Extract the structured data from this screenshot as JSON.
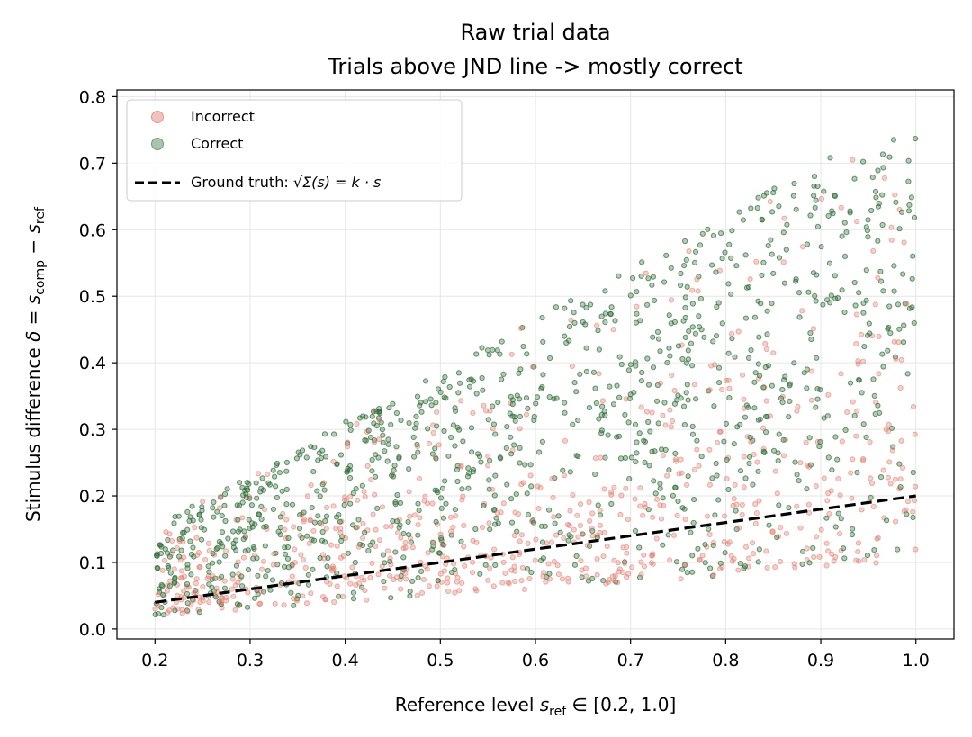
{
  "chart_data": {
    "type": "scatter",
    "title": "Raw trial data",
    "subtitle": "Trials above JND line -> mostly correct",
    "xlabel": "Reference level  s_ref ∈  [0.2, 1.0]",
    "ylabel": "Stimulus difference  δ = s_comp − s_ref",
    "xlim": [
      0.16,
      1.04
    ],
    "ylim": [
      -0.015,
      0.81
    ],
    "xticks": [
      "0.2",
      "0.3",
      "0.4",
      "0.5",
      "0.6",
      "0.7",
      "0.8",
      "0.9",
      "1.0"
    ],
    "yticks": [
      "0.0",
      "0.1",
      "0.2",
      "0.3",
      "0.4",
      "0.5",
      "0.6",
      "0.7",
      "0.8"
    ],
    "grid": true,
    "legend_position": "top-left",
    "series": [
      {
        "name": "Incorrect",
        "color": "#e07b6e",
        "marker": "circle",
        "n_points": 720,
        "region": "mostly below ~0.5*s+0.1"
      },
      {
        "name": "Correct",
        "color": "#2e6b35",
        "marker": "circle",
        "n_points": 1080,
        "region": "spread up to ~0.78*s"
      },
      {
        "name": "Ground truth: √Σ(s) = k · s",
        "color": "#000000",
        "style": "dashed",
        "k": 0.2,
        "x": [
          0.2,
          1.0
        ],
        "y": [
          0.04,
          0.2
        ]
      }
    ],
    "sampling": {
      "x_range": [
        0.2,
        1.0
      ],
      "delta_min_ratio": 0.1,
      "delta_max_ratio": 0.78
    }
  },
  "legend": {
    "incorrect": "Incorrect",
    "correct": "Correct",
    "ground_truth_prefix": "Ground truth: ",
    "ground_truth_formula": "√Σ(s) = k · s"
  }
}
